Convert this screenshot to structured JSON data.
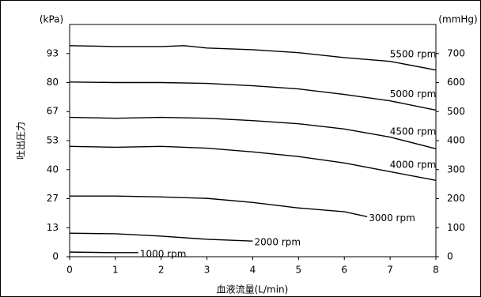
{
  "chart_data": {
    "type": "line",
    "x_label": "血液流量(L/min)",
    "y_label": "吐出圧力",
    "y_unit": "(kPa)",
    "y2_unit": "(mmHg)",
    "xlim": [
      0,
      8
    ],
    "xticks": [
      0,
      1,
      2,
      3,
      4,
      5,
      6,
      7,
      8
    ],
    "ylim": [
      0,
      106.67
    ],
    "yticks": [
      {
        "value": 0,
        "label": "0"
      },
      {
        "value": 13.33,
        "label": "13"
      },
      {
        "value": 26.67,
        "label": "27"
      },
      {
        "value": 40,
        "label": "40"
      },
      {
        "value": 53.33,
        "label": "53"
      },
      {
        "value": 66.67,
        "label": "67"
      },
      {
        "value": 80,
        "label": "80"
      },
      {
        "value": 93.33,
        "label": "93"
      }
    ],
    "y2lim": [
      0,
      800
    ],
    "y2ticks": [
      0,
      100,
      200,
      300,
      400,
      500,
      600,
      700
    ],
    "series": [
      {
        "name": "5500 rpm",
        "color": "#000000",
        "axis": "y2",
        "x": [
          0,
          1,
          2,
          2.5,
          3,
          4,
          5,
          6,
          7,
          8
        ],
        "values": [
          727,
          724,
          724,
          727,
          719,
          713,
          703,
          686,
          673,
          643
        ]
      },
      {
        "name": "5000 rpm",
        "color": "#000000",
        "axis": "y2",
        "x": [
          0,
          1,
          2,
          3,
          4,
          5,
          6,
          7,
          8
        ],
        "values": [
          602,
          600,
          600,
          597,
          589,
          578,
          559,
          537,
          505
        ]
      },
      {
        "name": "4500 rpm",
        "color": "#000000",
        "axis": "y2",
        "x": [
          0,
          1,
          2,
          3,
          4,
          5,
          6,
          7,
          8
        ],
        "values": [
          480,
          477,
          480,
          477,
          469,
          458,
          440,
          412,
          372
        ]
      },
      {
        "name": "4000 rpm",
        "color": "#000000",
        "axis": "y2",
        "x": [
          0,
          1,
          2,
          3,
          4,
          5,
          6,
          7,
          8
        ],
        "values": [
          380,
          377,
          380,
          374,
          361,
          345,
          323,
          293,
          263
        ]
      },
      {
        "name": "3000 rpm",
        "color": "#000000",
        "axis": "y2",
        "x": [
          0,
          1,
          2,
          3,
          4,
          5,
          6,
          6.5
        ],
        "values": [
          209,
          209,
          206,
          201,
          187,
          168,
          155,
          138
        ]
      },
      {
        "name": "2000 rpm",
        "color": "#000000",
        "axis": "y2",
        "x": [
          0,
          1,
          2,
          3,
          4
        ],
        "values": [
          81,
          79,
          71,
          60,
          54
        ]
      },
      {
        "name": "1000 rpm",
        "color": "#000000",
        "axis": "y2",
        "x": [
          0,
          1,
          1.5
        ],
        "values": [
          16,
          14,
          14
        ]
      }
    ]
  }
}
